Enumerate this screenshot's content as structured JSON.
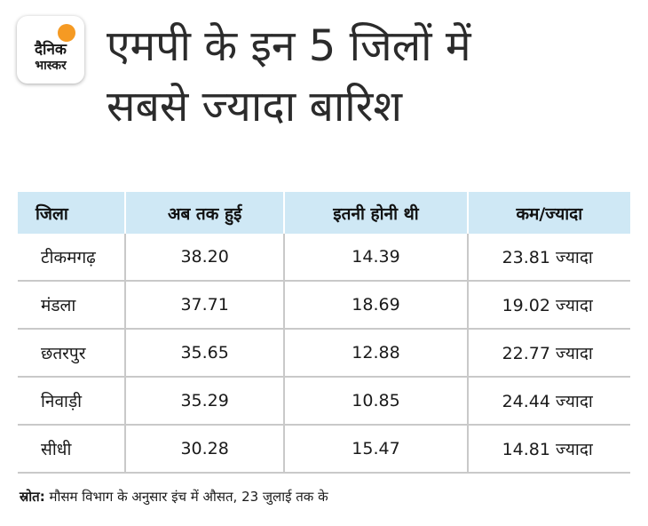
{
  "logo": {
    "line1": "दैनिक",
    "line2": "भास्कर",
    "sun_color": "#f59a23"
  },
  "title": {
    "line1": "एमपी के इन 5 जिलों में",
    "line2": "सबसे ज्यादा बारिश"
  },
  "table": {
    "header_bg": "#cfe8f5",
    "headers": [
      "जिला",
      "अब तक हुई",
      "इतनी होनी थी",
      "कम/ज्यादा"
    ],
    "rows": [
      [
        "टीकमगढ़",
        "38.20",
        "14.39",
        "23.81 ज्यादा"
      ],
      [
        "मंडला",
        "37.71",
        "18.69",
        "19.02 ज्यादा"
      ],
      [
        "छतरपुर",
        "35.65",
        "12.88",
        "22.77 ज्यादा"
      ],
      [
        "निवाड़ी",
        "35.29",
        "10.85",
        "24.44 ज्यादा"
      ],
      [
        "सीधी",
        "30.28",
        "15.47",
        "14.81 ज्यादा"
      ]
    ]
  },
  "source": {
    "label": "स्रोत:",
    "text": " मौसम विभाग के अनुसार इंच में औसत, 23 जुलाई तक के"
  }
}
